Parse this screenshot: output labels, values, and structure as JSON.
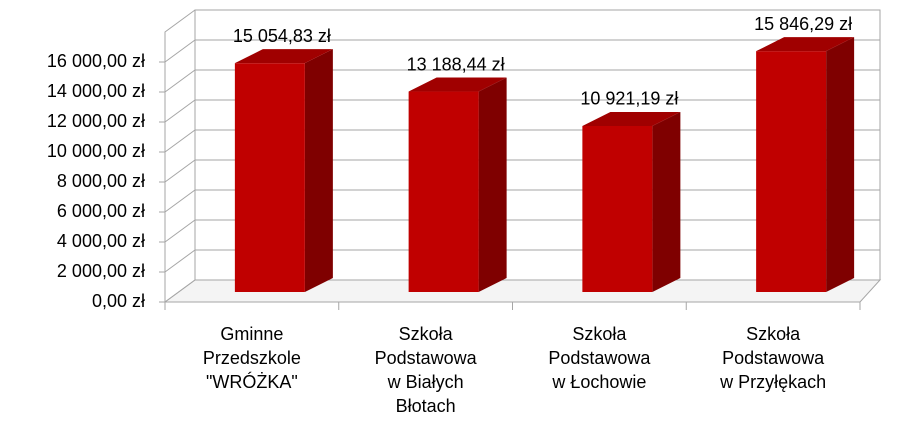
{
  "chart_data": {
    "type": "bar3d",
    "categories": [
      [
        "Gminne",
        "Przedszkole",
        "\"WRÓŻKA\""
      ],
      [
        "Szkoła",
        "Podstawowa",
        "w Białych",
        "Błotach"
      ],
      [
        "Szkoła",
        "Podstawowa",
        "w Łochowie"
      ],
      [
        "Szkoła",
        "Podstawowa",
        "w Przyłękach"
      ]
    ],
    "values": [
      15054.83,
      13188.44,
      10921.19,
      15846.29
    ],
    "value_labels": [
      "15 054,83 zł",
      "13 188,44 zł",
      "10 921,19 zł",
      "15 846,29 zł"
    ],
    "color": "#c00000",
    "ylim": [
      0,
      18000
    ],
    "yticks": [
      {
        "value": 0,
        "label": "0,00 zł"
      },
      {
        "value": 2000,
        "label": "2 000,00 zł"
      },
      {
        "value": 4000,
        "label": "4 000,00 zł"
      },
      {
        "value": 6000,
        "label": "6 000,00 zł"
      },
      {
        "value": 8000,
        "label": "8 000,00 zł"
      },
      {
        "value": 10000,
        "label": "10 000,00 zł"
      },
      {
        "value": 12000,
        "label": "12 000,00 zł"
      },
      {
        "value": 14000,
        "label": "14 000,00 zł"
      },
      {
        "value": 16000,
        "label": "16 000,00 zł"
      }
    ],
    "grid": true
  }
}
